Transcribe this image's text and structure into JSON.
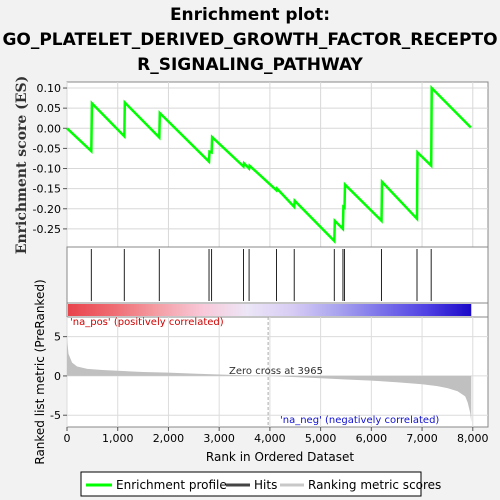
{
  "title_line1": "Enrichment plot:",
  "title_line2": "GO_PLATELET_DERIVED_GROWTH_FACTOR_RECEPTO",
  "title_line3": "R_SIGNALING_PATHWAY",
  "chart_data": [
    {
      "type": "line",
      "ylabel": "Enrichment score (ES)",
      "xlim": [
        0,
        8300
      ],
      "ylim": [
        -0.295,
        0.115
      ],
      "yticks": [
        0.1,
        0.05,
        0.0,
        -0.05,
        -0.1,
        -0.15,
        -0.2,
        -0.25
      ],
      "ytick_labels": [
        "0.10",
        "0.05",
        "0.00",
        "-0.05",
        "-0.10",
        "-0.15",
        "-0.20",
        "-0.25"
      ],
      "color": "#00ff00",
      "series": [
        {
          "name": "Enrichment profile",
          "x": [
            0,
            480,
            490,
            1130,
            1140,
            1820,
            1830,
            2800,
            2810,
            2850,
            2860,
            3480,
            3490,
            3590,
            3600,
            4130,
            4140,
            4480,
            4490,
            5270,
            5280,
            5440,
            5450,
            5470,
            5480,
            6200,
            6210,
            6900,
            6910,
            7180,
            7190,
            7960
          ],
          "y": [
            0.0,
            -0.057,
            0.062,
            -0.02,
            0.064,
            -0.023,
            0.038,
            -0.083,
            -0.058,
            -0.06,
            -0.022,
            -0.095,
            -0.087,
            -0.1,
            -0.093,
            -0.154,
            -0.15,
            -0.195,
            -0.18,
            -0.28,
            -0.23,
            -0.25,
            -0.195,
            -0.197,
            -0.14,
            -0.23,
            -0.133,
            -0.225,
            -0.06,
            -0.093,
            0.1,
            0.002
          ]
        }
      ]
    },
    {
      "type": "hits",
      "series": [
        {
          "name": "Hits",
          "x": [
            480,
            1130,
            1820,
            2800,
            2850,
            3480,
            3590,
            4130,
            4480,
            5270,
            5440,
            5470,
            6200,
            6900,
            7180
          ]
        }
      ]
    },
    {
      "type": "heatmap",
      "gradient_stops": [
        "#e8444c",
        "#ef6b72",
        "#f49ea4",
        "#f8c8d8",
        "#ece6f7",
        "#d7ccf4",
        "#aaa4ef",
        "#7a71ea",
        "#4f41e3",
        "#1a08c8"
      ],
      "labels": {
        "pos": "'na_pos' (positively correlated)",
        "neg": "'na_neg' (negatively correlated)"
      },
      "pos_color": "#d00000",
      "neg_color": "#1010d0"
    },
    {
      "type": "area",
      "xlabel": "Rank in Ordered Dataset",
      "ylabel": "Ranked list metric (PreRanked)",
      "xlim": [
        0,
        8300
      ],
      "ylim": [
        -6.5,
        7.5
      ],
      "xticks": [
        0,
        1000,
        2000,
        3000,
        4000,
        5000,
        6000,
        7000,
        8000
      ],
      "xtick_labels": [
        "0",
        "1,000",
        "2,000",
        "3,000",
        "4,000",
        "5,000",
        "6,000",
        "7,000",
        "8,000"
      ],
      "yticks": [
        5,
        0,
        -5
      ],
      "ytick_labels": [
        "5",
        "0",
        "-5"
      ],
      "zero_cross_label": "Zero cross at 3965",
      "zero_cross": 3965,
      "color": "#c0c0c0",
      "series": [
        {
          "name": "Ranking metric scores",
          "x": [
            0,
            30,
            100,
            200,
            400,
            700,
            1000,
            1500,
            2000,
            2500,
            3000,
            3500,
            3965,
            4500,
            5000,
            5500,
            6000,
            6500,
            7000,
            7300,
            7500,
            7700,
            7850,
            7900,
            7950,
            7970
          ],
          "y": [
            4.8,
            2.8,
            1.7,
            1.2,
            0.9,
            0.75,
            0.65,
            0.5,
            0.42,
            0.3,
            0.18,
            0.08,
            0.0,
            -0.15,
            -0.3,
            -0.45,
            -0.6,
            -0.8,
            -1.05,
            -1.3,
            -1.55,
            -1.95,
            -2.6,
            -3.4,
            -4.7,
            -5.9
          ]
        }
      ]
    }
  ],
  "legend": {
    "items": [
      {
        "label": "Enrichment profile",
        "color": "#00ff00"
      },
      {
        "label": "Hits",
        "color": "#444444"
      },
      {
        "label": "Ranking metric scores",
        "color": "#c8c8c8"
      }
    ]
  }
}
